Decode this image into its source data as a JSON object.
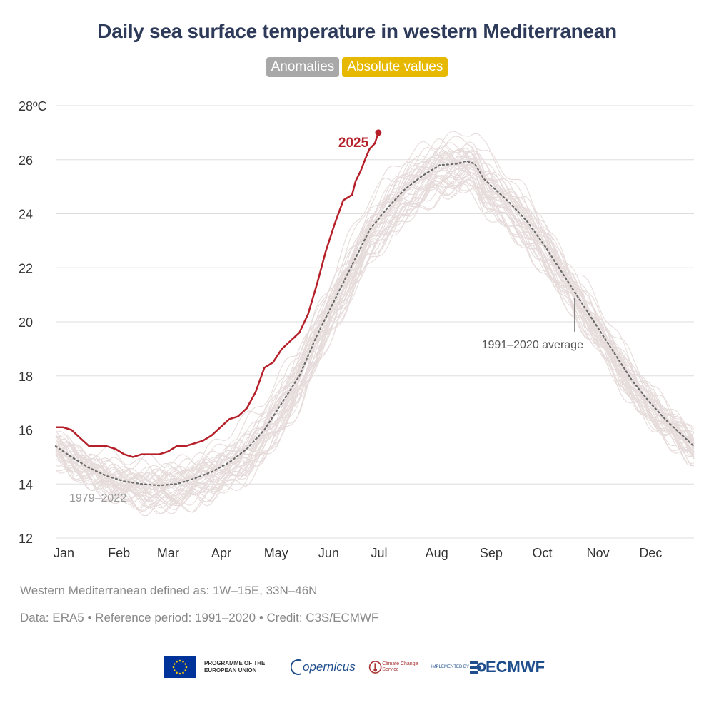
{
  "title": "Daily sea surface temperature in western Mediterranean",
  "toggle": {
    "anomalies_label": "Anomalies",
    "absolute_label": "Absolute values"
  },
  "footer": {
    "definition": "Western Mediterranean defined as: 1W–15E, 33N–46N",
    "credits": "Data: ERA5 • Reference period: 1991–2020 • Credit: C3S/ECMWF"
  },
  "logos": {
    "eu_text": "PROGRAMME OF THE EUROPEAN UNION",
    "copernicus": "opernicus",
    "c3s": "Climate Change Service",
    "ecmwf_prefix": "IMPLEMENTED BY",
    "ecmwf": "ECMWF"
  },
  "colors": {
    "highlight": "#b5202a",
    "history": "#e6dcdb",
    "average": "#6b6b6b",
    "grid": "#dddddd"
  },
  "chart_data": {
    "type": "line",
    "title": "Daily sea surface temperature in western Mediterranean",
    "ylabel": "",
    "ylim": [
      12,
      28
    ],
    "y_ticks": [
      12,
      14,
      16,
      18,
      20,
      22,
      24,
      26,
      28
    ],
    "y_tick_labels": [
      "12",
      "14",
      "16",
      "18",
      "20",
      "22",
      "24",
      "26",
      "28ºC"
    ],
    "x_unit": "day of year",
    "xlim": [
      1,
      365
    ],
    "month_labels": [
      "Jan",
      "Feb",
      "Mar",
      "Apr",
      "May",
      "Jun",
      "Jul",
      "Aug",
      "Sep",
      "Oct",
      "Nov",
      "Dec"
    ],
    "month_start_days": [
      1,
      32,
      60,
      91,
      121,
      152,
      182,
      213,
      244,
      274,
      305,
      335
    ],
    "series": [
      {
        "name": "2025",
        "role": "highlight",
        "x": [
          1,
          5,
          10,
          15,
          20,
          25,
          30,
          35,
          40,
          45,
          50,
          55,
          60,
          65,
          70,
          75,
          80,
          85,
          90,
          95,
          100,
          105,
          110,
          115,
          120,
          125,
          130,
          135,
          140,
          145,
          150,
          155,
          160,
          165,
          170,
          172,
          175,
          178,
          180,
          183,
          185
        ],
        "y": [
          16.1,
          16.1,
          16.0,
          15.7,
          15.4,
          15.4,
          15.4,
          15.3,
          15.1,
          15.0,
          15.1,
          15.1,
          15.1,
          15.2,
          15.4,
          15.4,
          15.5,
          15.6,
          15.8,
          16.1,
          16.4,
          16.5,
          16.8,
          17.4,
          18.3,
          18.5,
          19.0,
          19.3,
          19.6,
          20.3,
          21.4,
          22.6,
          23.6,
          24.5,
          24.7,
          25.2,
          25.6,
          26.1,
          26.4,
          26.6,
          27.0
        ]
      },
      {
        "name": "1991–2020 average",
        "role": "average",
        "x": [
          1,
          10,
          20,
          30,
          40,
          50,
          60,
          70,
          80,
          90,
          100,
          110,
          120,
          130,
          140,
          150,
          160,
          170,
          180,
          190,
          200,
          210,
          220,
          230,
          235,
          240,
          245,
          250,
          260,
          270,
          280,
          290,
          300,
          310,
          320,
          330,
          340,
          350,
          360,
          365
        ],
        "y": [
          15.4,
          15.0,
          14.6,
          14.3,
          14.1,
          14.0,
          13.95,
          14.0,
          14.2,
          14.45,
          14.8,
          15.3,
          16.0,
          17.0,
          18.0,
          19.5,
          20.8,
          22.1,
          23.4,
          24.2,
          24.9,
          25.4,
          25.8,
          25.85,
          25.95,
          25.85,
          25.3,
          25.0,
          24.4,
          23.7,
          22.8,
          21.8,
          20.8,
          19.8,
          18.8,
          17.8,
          17.0,
          16.3,
          15.7,
          15.4
        ]
      }
    ],
    "historical_range_label": "1979–2022",
    "historical_count": 44,
    "annotations": [
      {
        "text": "2025",
        "x": 185,
        "y": 27.0
      },
      {
        "text": "1991–2020 average",
        "x": 297,
        "y": 20.9
      },
      {
        "text": "1979–2022",
        "x": 35,
        "y": 13.6
      }
    ]
  }
}
